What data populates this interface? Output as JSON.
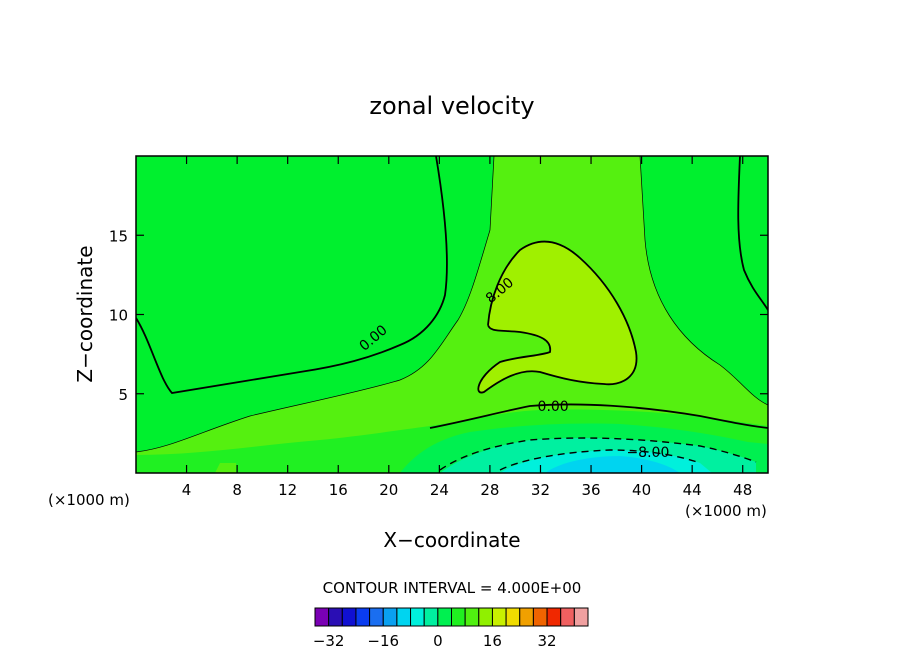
{
  "chart_data": {
    "type": "heatmap",
    "title": "zonal velocity",
    "xlabel": "X−coordinate",
    "ylabel": "Z−coordinate",
    "x_unit_label": "(×1000 m)",
    "x_unit_label_right": "(×1000 m)",
    "xlim": [
      0,
      50
    ],
    "ylim": [
      0,
      20
    ],
    "x_ticks": [
      4,
      8,
      12,
      16,
      20,
      24,
      28,
      32,
      36,
      40,
      44,
      48
    ],
    "y_ticks": [
      5,
      10,
      15
    ],
    "contour_interval_text": "CONTOUR INTERVAL = 4.000E+00",
    "contour_labels": [
      {
        "text": "0.00",
        "x": 19,
        "z": 8.3
      },
      {
        "text": "8.00",
        "x": 29,
        "z": 11.3
      },
      {
        "text": "0.00",
        "x": 33,
        "z": 3.9
      },
      {
        "text": "−8.00",
        "x": 40.5,
        "z": 1.0
      }
    ],
    "colorbar": {
      "levels": [
        -36,
        -32,
        -28,
        -24,
        -20,
        -16,
        -12,
        -8,
        -4,
        0,
        4,
        8,
        12,
        16,
        20,
        24,
        28,
        32,
        36,
        40
      ],
      "colors": [
        "#7a00b4",
        "#2a0eb4",
        "#1010d2",
        "#0a3cf0",
        "#1a6ef0",
        "#0aa0f0",
        "#00d4f0",
        "#00f0dc",
        "#00f0a0",
        "#00f050",
        "#20f020",
        "#50f010",
        "#90f000",
        "#c8f000",
        "#f0dc00",
        "#f0a000",
        "#f06400",
        "#f02800",
        "#f06060",
        "#f0a0a0"
      ],
      "tick_labels": [
        "−32",
        "−16",
        "0",
        "16",
        "32"
      ],
      "tick_values": [
        -32,
        -16,
        0,
        16,
        32
      ]
    }
  }
}
